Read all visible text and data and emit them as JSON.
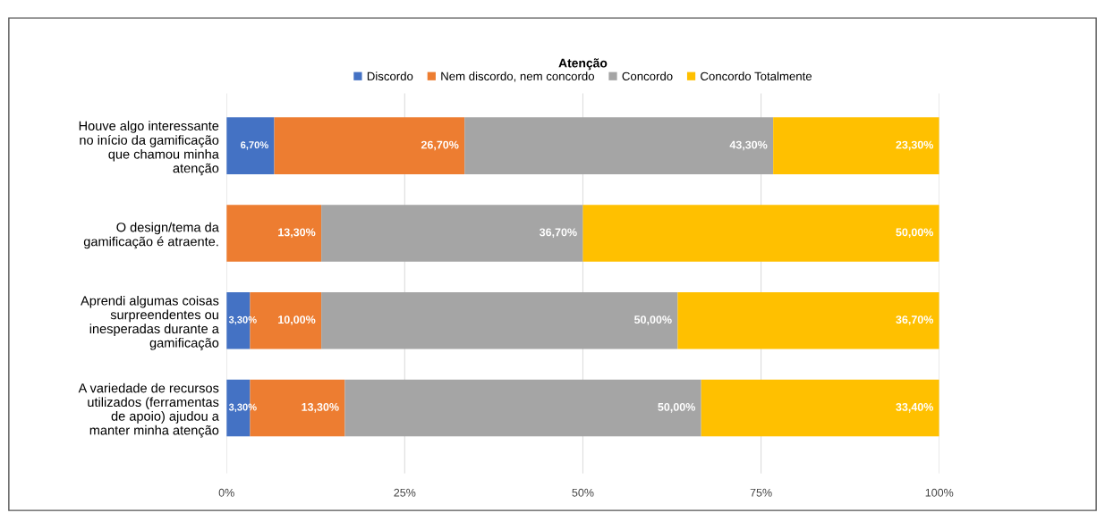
{
  "chart_data": {
    "type": "bar",
    "orientation": "horizontal",
    "stacked": true,
    "title": "Atenção",
    "categories": [
      "Houve algo interessante\nno início da gamificação\nque chamou minha\natenção",
      "O design/tema da\ngamificação é atraente.",
      "Aprendi algumas coisas\nsurpreendentes ou\ninesperadas durante a\ngamificação",
      "A variedade de recursos\nutilizados (ferramentas\nde apoio) ajudou a\nmanter minha atenção"
    ],
    "series": [
      {
        "name": "Discordo",
        "color": "#4472c4",
        "values": [
          6.7,
          null,
          3.3,
          3.3
        ],
        "value_labels": [
          "6,70%",
          null,
          "3,30%",
          "3,30%"
        ]
      },
      {
        "name": "Nem discordo, nem concordo",
        "color": "#ed7d31",
        "values": [
          26.7,
          13.3,
          10.0,
          13.3
        ],
        "value_labels": [
          "26,70%",
          "13,30%",
          "10,00%",
          "13,30%"
        ]
      },
      {
        "name": "Concordo",
        "color": "#a5a5a5",
        "values": [
          43.3,
          36.7,
          50.0,
          50.0
        ],
        "value_labels": [
          "43,30%",
          "36,70%",
          "50,00%",
          "50,00%"
        ]
      },
      {
        "name": "Concordo Totalmente",
        "color": "#ffc000",
        "values": [
          23.3,
          50.0,
          36.7,
          33.4
        ],
        "value_labels": [
          "23,30%",
          "50,00%",
          "36,70%",
          "33,40%"
        ]
      }
    ],
    "xlim": [
      0,
      100
    ],
    "xticks": [
      {
        "value": 0,
        "label": "0%"
      },
      {
        "value": 25,
        "label": "25%"
      },
      {
        "value": 50,
        "label": "50%"
      },
      {
        "value": 75,
        "label": "75%"
      },
      {
        "value": 100,
        "label": "100%"
      }
    ],
    "grid": "x",
    "legend": "top"
  }
}
